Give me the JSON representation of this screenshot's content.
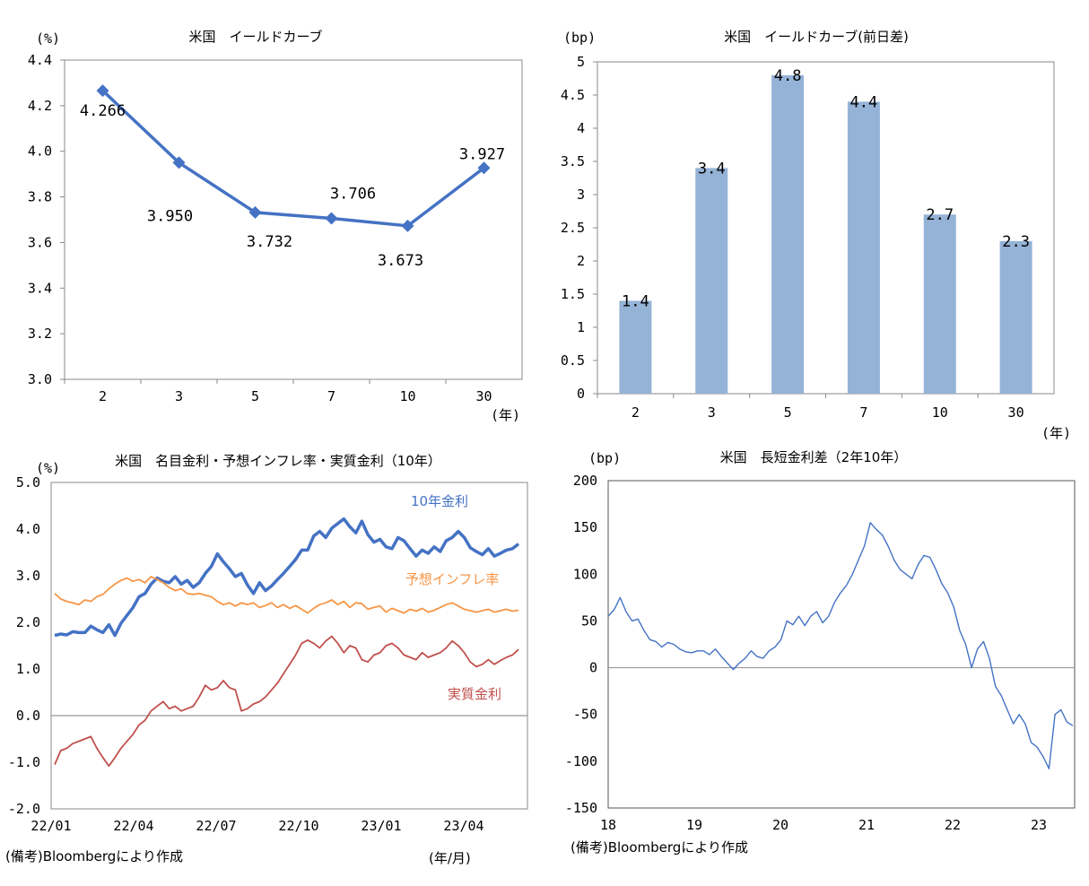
{
  "chart_data": [
    {
      "type": "line",
      "title": "米国　イールドカーブ",
      "ylabel": "(%)",
      "xlabel": "(年)",
      "categories": [
        "2",
        "3",
        "5",
        "7",
        "10",
        "30"
      ],
      "values": [
        4.266,
        3.95,
        3.732,
        3.706,
        3.673,
        3.927
      ],
      "data_labels": [
        "4.266",
        "3.950",
        "3.732",
        "3.706",
        "3.673",
        "3.927"
      ],
      "ylim": [
        3.0,
        4.4
      ],
      "yticks": [
        "3.0",
        "3.2",
        "3.4",
        "3.6",
        "3.8",
        "4.0",
        "4.2",
        "4.4"
      ],
      "color": "#4472c4"
    },
    {
      "type": "bar",
      "title": "米国　イールドカーブ(前日差)",
      "ylabel": "(bp)",
      "xlabel": "(年)",
      "categories": [
        "2",
        "3",
        "5",
        "7",
        "10",
        "30"
      ],
      "values": [
        1.4,
        3.4,
        4.8,
        4.4,
        2.7,
        2.3
      ],
      "data_labels": [
        "1.4",
        "3.4",
        "4.8",
        "4.4",
        "2.7",
        "2.3"
      ],
      "ylim": [
        0,
        5
      ],
      "yticks": [
        "0",
        "0.5",
        "1",
        "1.5",
        "2",
        "2.5",
        "3",
        "3.5",
        "4",
        "4.5",
        "5"
      ],
      "color": "#95b3d7"
    },
    {
      "type": "line",
      "title": "米国　名目金利・予想インフレ率・実質金利（10年）",
      "ylabel": "(%)",
      "xlabel": "(年/月)",
      "note": "(備考)Bloombergにより作成",
      "xticks": [
        "22/01",
        "22/04",
        "22/07",
        "22/10",
        "23/01",
        "23/04"
      ],
      "ylim": [
        -2.0,
        5.0
      ],
      "yticks": [
        "-2.0",
        "-1.0",
        "0.0",
        "1.0",
        "2.0",
        "3.0",
        "4.0",
        "5.0"
      ],
      "series": [
        {
          "name": "10年金利",
          "color": "#4472c4",
          "values": [
            1.72,
            1.75,
            1.73,
            1.8,
            1.78,
            1.78,
            1.92,
            1.84,
            1.78,
            1.95,
            1.72,
            1.98,
            2.15,
            2.32,
            2.55,
            2.62,
            2.82,
            2.95,
            2.88,
            2.85,
            2.98,
            2.82,
            2.9,
            2.75,
            2.85,
            3.05,
            3.2,
            3.47,
            3.3,
            3.15,
            2.98,
            3.05,
            2.8,
            2.62,
            2.85,
            2.68,
            2.78,
            2.92,
            3.05,
            3.2,
            3.35,
            3.55,
            3.55,
            3.85,
            3.95,
            3.82,
            4.02,
            4.12,
            4.22,
            4.05,
            3.92,
            4.17,
            3.88,
            3.72,
            3.78,
            3.62,
            3.58,
            3.82,
            3.75,
            3.58,
            3.42,
            3.55,
            3.48,
            3.62,
            3.52,
            3.75,
            3.82,
            3.95,
            3.82,
            3.6,
            3.52,
            3.45,
            3.58,
            3.42,
            3.48,
            3.55,
            3.58,
            3.68
          ]
        },
        {
          "name": "予想インフレ率",
          "color": "#f79646",
          "values": [
            2.62,
            2.5,
            2.45,
            2.42,
            2.38,
            2.48,
            2.45,
            2.55,
            2.6,
            2.72,
            2.82,
            2.9,
            2.95,
            2.88,
            2.92,
            2.85,
            2.98,
            2.92,
            2.85,
            2.75,
            2.68,
            2.72,
            2.62,
            2.6,
            2.62,
            2.58,
            2.55,
            2.45,
            2.38,
            2.42,
            2.35,
            2.42,
            2.38,
            2.42,
            2.32,
            2.36,
            2.42,
            2.32,
            2.38,
            2.3,
            2.36,
            2.28,
            2.2,
            2.3,
            2.38,
            2.42,
            2.48,
            2.38,
            2.45,
            2.32,
            2.42,
            2.4,
            2.28,
            2.32,
            2.35,
            2.22,
            2.3,
            2.25,
            2.2,
            2.28,
            2.24,
            2.3,
            2.22,
            2.26,
            2.32,
            2.38,
            2.42,
            2.35,
            2.28,
            2.25,
            2.22,
            2.25,
            2.28,
            2.22,
            2.25,
            2.28,
            2.24,
            2.26
          ]
        },
        {
          "name": "実質金利",
          "color": "#c0504d",
          "values": [
            -1.05,
            -0.75,
            -0.7,
            -0.6,
            -0.55,
            -0.5,
            -0.45,
            -0.7,
            -0.9,
            -1.08,
            -0.9,
            -0.7,
            -0.55,
            -0.4,
            -0.2,
            -0.1,
            0.1,
            0.2,
            0.3,
            0.15,
            0.2,
            0.1,
            0.15,
            0.2,
            0.4,
            0.65,
            0.55,
            0.6,
            0.75,
            0.6,
            0.55,
            0.1,
            0.15,
            0.25,
            0.3,
            0.4,
            0.55,
            0.7,
            0.9,
            1.1,
            1.3,
            1.55,
            1.62,
            1.55,
            1.45,
            1.6,
            1.7,
            1.55,
            1.35,
            1.5,
            1.45,
            1.2,
            1.15,
            1.3,
            1.35,
            1.5,
            1.55,
            1.45,
            1.3,
            1.25,
            1.2,
            1.35,
            1.25,
            1.3,
            1.35,
            1.45,
            1.6,
            1.5,
            1.35,
            1.15,
            1.05,
            1.1,
            1.2,
            1.1,
            1.18,
            1.25,
            1.3,
            1.42
          ]
        }
      ]
    },
    {
      "type": "line",
      "title": "米国　長短金利差（2年10年）",
      "ylabel": "(bp)",
      "note": "(備考)Bloombergにより作成",
      "xticks": [
        "18",
        "19",
        "20",
        "21",
        "22",
        "23"
      ],
      "ylim": [
        -150,
        200
      ],
      "yticks": [
        "-150",
        "-100",
        "-50",
        "0",
        "50",
        "100",
        "150",
        "200"
      ],
      "series": [
        {
          "name": "2年10年",
          "color": "#4472c4",
          "values": [
            55,
            62,
            75,
            60,
            50,
            52,
            40,
            30,
            28,
            22,
            27,
            25,
            20,
            17,
            16,
            18,
            18,
            14,
            20,
            12,
            5,
            -2,
            5,
            10,
            18,
            12,
            10,
            18,
            22,
            30,
            50,
            46,
            55,
            45,
            55,
            60,
            48,
            55,
            70,
            80,
            88,
            100,
            115,
            130,
            155,
            148,
            142,
            130,
            115,
            105,
            100,
            95,
            110,
            120,
            118,
            105,
            90,
            80,
            65,
            40,
            25,
            0,
            20,
            28,
            10,
            -20,
            -30,
            -45,
            -60,
            -50,
            -60,
            -80,
            -85,
            -95,
            -108,
            -50,
            -45,
            -58,
            -62
          ]
        }
      ]
    }
  ]
}
